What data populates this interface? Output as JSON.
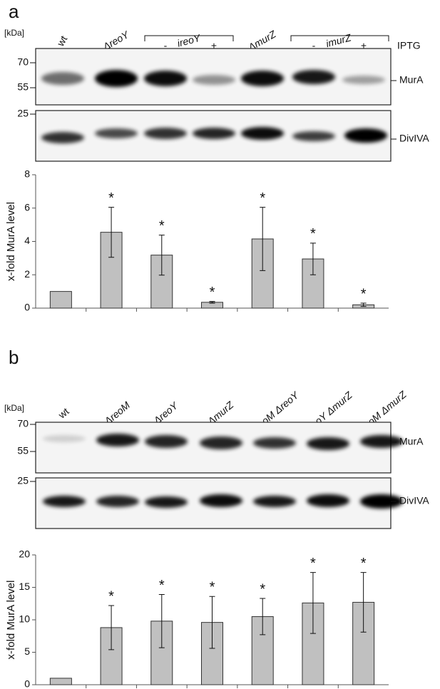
{
  "panels": [
    {
      "letter": "a",
      "kda": "[kDa]",
      "lanes": [
        "wt",
        "ΔreoY",
        "ireoY",
        "ΔmurZ",
        "imurZ"
      ],
      "signs": [
        "-",
        "+",
        "-",
        "+"
      ],
      "inducer": "IPTG",
      "markers_top": [
        "70",
        "55"
      ],
      "marker_bottom": "25",
      "protein_top": "MurA",
      "protein_bottom": "DivIVA"
    },
    {
      "letter": "b",
      "kda": "[kDa]",
      "lanes": [
        "wt",
        "ΔreoM",
        "ΔreoY",
        "ΔmurZ",
        "ΔreoM ΔreoY",
        "ΔreoY ΔmurZ",
        "ΔreoM ΔmurZ"
      ],
      "markers_top": [
        "70",
        "55"
      ],
      "marker_bottom": "25",
      "protein_top": "MurA",
      "protein_bottom": "DivIVA"
    }
  ],
  "chart_data": [
    {
      "type": "bar",
      "ylabel": "x-fold MurA level",
      "color": "#c0c0c0",
      "categories": [
        null,
        null,
        null,
        null,
        null,
        null,
        null
      ],
      "values": [
        1,
        4.55,
        3.18,
        0.35,
        4.15,
        2.95,
        0.2
      ],
      "errors": [
        0,
        1.5,
        1.2,
        0.05,
        1.9,
        0.95,
        0.1
      ],
      "annotations": [
        null,
        "*",
        "*",
        "*",
        "*",
        "*",
        "*"
      ],
      "ylim": [
        0,
        8
      ],
      "yticks": [
        0,
        2,
        4,
        6,
        8
      ]
    },
    {
      "type": "bar",
      "ylabel": "x-fold MurA level",
      "color": "#c0c0c0",
      "categories": [
        null,
        null,
        null,
        null,
        null,
        null,
        null
      ],
      "values": [
        1,
        8.8,
        9.8,
        9.6,
        10.5,
        12.6,
        12.7
      ],
      "errors": [
        0,
        3.4,
        4.1,
        4.0,
        2.8,
        4.7,
        4.6
      ],
      "annotations": [
        null,
        "*",
        "*",
        "*",
        "*",
        "*",
        "*"
      ],
      "ylim": [
        0,
        20
      ],
      "yticks": [
        0,
        5,
        10,
        15,
        20
      ]
    }
  ]
}
